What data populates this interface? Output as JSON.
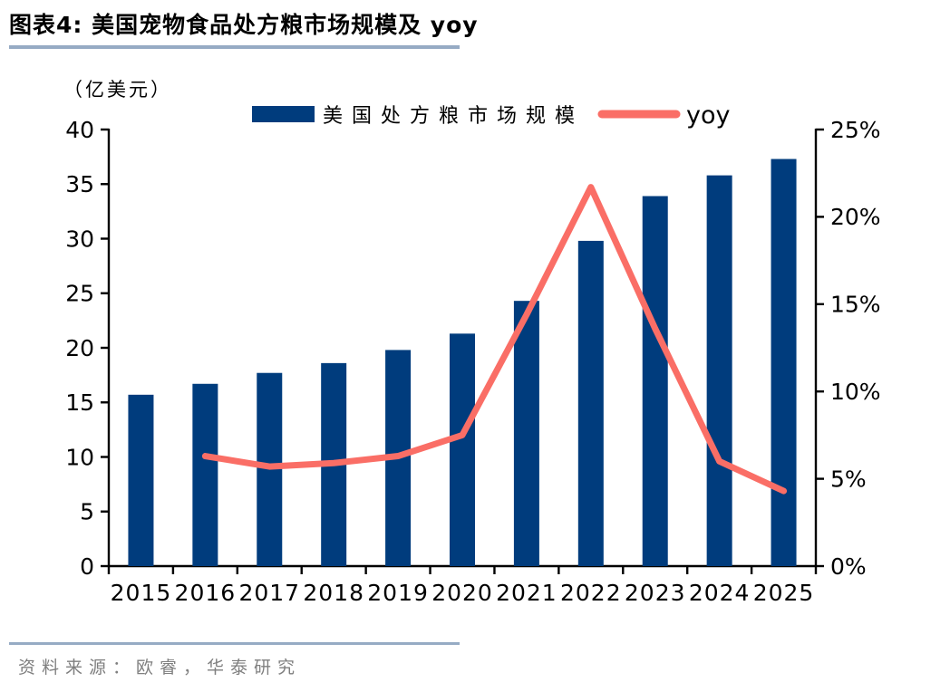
{
  "header": {
    "title": "图表4:  美国宠物食品处方粮市场规模及 yoy"
  },
  "footer": {
    "source": "资料来源：欧睿，华泰研究"
  },
  "colors": {
    "bar": "#003C7D",
    "line": "#FA6E66",
    "axis": "#000000",
    "divider": "#96ABC4",
    "source_text": "#7F7F7F"
  },
  "chart_data": {
    "type": "bar",
    "subtype": "bar+line dual axis",
    "unit_label": "（亿美元）",
    "categories": [
      "2015",
      "2016",
      "2017",
      "2018",
      "2019",
      "2020",
      "2021",
      "2022",
      "2023",
      "2024",
      "2025"
    ],
    "series": [
      {
        "name": "美国处方粮市场规模",
        "type": "bar",
        "axis": "left",
        "color": "#003C7D",
        "values": [
          15.7,
          16.7,
          17.7,
          18.6,
          19.8,
          21.3,
          24.3,
          29.8,
          33.9,
          35.8,
          37.3
        ]
      },
      {
        "name": "yoy",
        "type": "line",
        "axis": "right",
        "color": "#FA6E66",
        "values": [
          null,
          6.3,
          5.7,
          5.9,
          6.3,
          7.5,
          14.4,
          21.7,
          13.6,
          6.0,
          4.3
        ]
      }
    ],
    "left_axis": {
      "min": 0,
      "max": 40,
      "step": 5,
      "tick_labels": [
        "0",
        "5",
        "10",
        "15",
        "20",
        "25",
        "30",
        "35",
        "40"
      ]
    },
    "right_axis": {
      "min": 0,
      "max": 25,
      "step": 5,
      "tick_labels": [
        "0%",
        "5%",
        "10%",
        "15%",
        "20%",
        "25%"
      ]
    },
    "legend_position": "top",
    "grid": false
  }
}
